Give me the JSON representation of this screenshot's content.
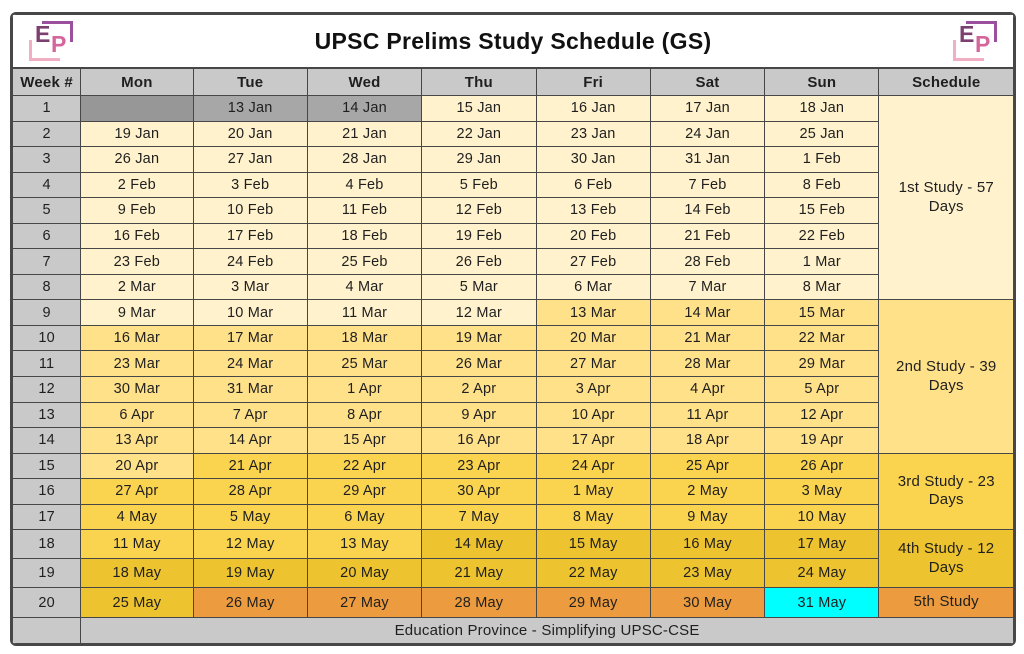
{
  "page": {
    "title": "UPSC Prelims Study Schedule (GS)",
    "footer": "Education Province - Simplifying UPSC-CSE"
  },
  "logo": {
    "e": "E",
    "p": "P"
  },
  "columns": [
    "Week #",
    "Mon",
    "Tue",
    "Wed",
    "Thu",
    "Fri",
    "Sat",
    "Sun",
    "Schedule"
  ],
  "colors": {
    "study1": "#FFF2CC",
    "study2": "#FFE18A",
    "study3": "#FBD44F",
    "study4": "#EDC32F",
    "study5": "#EC9B3E",
    "exam_day": "#00FFFF",
    "blocked_empty": "#979797",
    "blocked_date": "#A7A7A7",
    "header_gray": "#C9C9C9"
  },
  "weeks": [
    {
      "num": "1",
      "dates": [
        "",
        "13 Jan",
        "14 Jan",
        "15 Jan",
        "16 Jan",
        "17 Jan",
        "18 Jan"
      ],
      "phases": [
        "blocked_empty",
        "blocked_date",
        "blocked_date",
        "study1",
        "study1",
        "study1",
        "study1"
      ]
    },
    {
      "num": "2",
      "dates": [
        "19 Jan",
        "20 Jan",
        "21 Jan",
        "22 Jan",
        "23 Jan",
        "24 Jan",
        "25 Jan"
      ],
      "phase": "study1"
    },
    {
      "num": "3",
      "dates": [
        "26 Jan",
        "27 Jan",
        "28 Jan",
        "29 Jan",
        "30 Jan",
        "31 Jan",
        "1 Feb"
      ],
      "phase": "study1"
    },
    {
      "num": "4",
      "dates": [
        "2 Feb",
        "3 Feb",
        "4 Feb",
        "5 Feb",
        "6 Feb",
        "7 Feb",
        "8 Feb"
      ],
      "phase": "study1"
    },
    {
      "num": "5",
      "dates": [
        "9 Feb",
        "10 Feb",
        "11 Feb",
        "12 Feb",
        "13 Feb",
        "14 Feb",
        "15 Feb"
      ],
      "phase": "study1"
    },
    {
      "num": "6",
      "dates": [
        "16 Feb",
        "17 Feb",
        "18 Feb",
        "19 Feb",
        "20 Feb",
        "21 Feb",
        "22 Feb"
      ],
      "phase": "study1"
    },
    {
      "num": "7",
      "dates": [
        "23 Feb",
        "24 Feb",
        "25 Feb",
        "26 Feb",
        "27 Feb",
        "28 Feb",
        "1 Mar"
      ],
      "phase": "study1"
    },
    {
      "num": "8",
      "dates": [
        "2 Mar",
        "3 Mar",
        "4 Mar",
        "5 Mar",
        "6 Mar",
        "7 Mar",
        "8 Mar"
      ],
      "phase": "study1"
    },
    {
      "num": "9",
      "dates": [
        "9 Mar",
        "10 Mar",
        "11 Mar",
        "12 Mar",
        "13 Mar",
        "14 Mar",
        "15 Mar"
      ],
      "phases": [
        "study1",
        "study1",
        "study1",
        "study1",
        "study2",
        "study2",
        "study2"
      ]
    },
    {
      "num": "10",
      "dates": [
        "16 Mar",
        "17 Mar",
        "18 Mar",
        "19 Mar",
        "20 Mar",
        "21 Mar",
        "22 Mar"
      ],
      "phase": "study2"
    },
    {
      "num": "11",
      "dates": [
        "23 Mar",
        "24 Mar",
        "25 Mar",
        "26 Mar",
        "27 Mar",
        "28 Mar",
        "29 Mar"
      ],
      "phase": "study2"
    },
    {
      "num": "12",
      "dates": [
        "30 Mar",
        "31 Mar",
        "1 Apr",
        "2 Apr",
        "3 Apr",
        "4 Apr",
        "5 Apr"
      ],
      "phase": "study2"
    },
    {
      "num": "13",
      "dates": [
        "6 Apr",
        "7 Apr",
        "8 Apr",
        "9 Apr",
        "10 Apr",
        "11 Apr",
        "12 Apr"
      ],
      "phase": "study2"
    },
    {
      "num": "14",
      "dates": [
        "13 Apr",
        "14 Apr",
        "15 Apr",
        "16 Apr",
        "17 Apr",
        "18 Apr",
        "19 Apr"
      ],
      "phase": "study2"
    },
    {
      "num": "15",
      "dates": [
        "20 Apr",
        "21 Apr",
        "22 Apr",
        "23 Apr",
        "24 Apr",
        "25 Apr",
        "26 Apr"
      ],
      "phases": [
        "study2",
        "study3",
        "study3",
        "study3",
        "study3",
        "study3",
        "study3"
      ]
    },
    {
      "num": "16",
      "dates": [
        "27 Apr",
        "28 Apr",
        "29 Apr",
        "30 Apr",
        "1 May",
        "2 May",
        "3 May"
      ],
      "phase": "study3"
    },
    {
      "num": "17",
      "dates": [
        "4 May",
        "5 May",
        "6 May",
        "7 May",
        "8 May",
        "9 May",
        "10 May"
      ],
      "phase": "study3"
    },
    {
      "num": "18",
      "dates": [
        "11 May",
        "12 May",
        "13 May",
        "14 May",
        "15 May",
        "16 May",
        "17 May"
      ],
      "phases": [
        "study3",
        "study3",
        "study3",
        "study4",
        "study4",
        "study4",
        "study4"
      ]
    },
    {
      "num": "19",
      "dates": [
        "18 May",
        "19 May",
        "20 May",
        "21 May",
        "22 May",
        "23 May",
        "24 May"
      ],
      "phase": "study4"
    },
    {
      "num": "20",
      "dates": [
        "25 May",
        "26 May",
        "27 May",
        "28 May",
        "29 May",
        "30 May",
        "31 May"
      ],
      "phases": [
        "study4",
        "study5",
        "study5",
        "study5",
        "study5",
        "study5",
        "exam_day"
      ]
    }
  ],
  "schedule_blocks": [
    {
      "label": "1st Study - 57 Days",
      "weeks": 8,
      "phase": "study1"
    },
    {
      "label": "2nd Study - 39 Days",
      "weeks": 6,
      "phase": "study2"
    },
    {
      "label": "3rd Study - 23 Days",
      "weeks": 3,
      "phase": "study3"
    },
    {
      "label": "4th Study - 12 Days",
      "weeks": 2,
      "phase": "study4"
    },
    {
      "label": "5th Study",
      "weeks": 1,
      "phase": "study5"
    }
  ]
}
